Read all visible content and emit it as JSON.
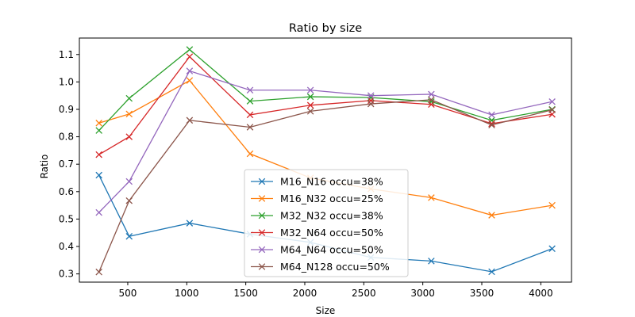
{
  "chart_data": {
    "type": "line",
    "title": "Ratio by size",
    "xlabel": "Size",
    "ylabel": "Ratio",
    "xlim": [
      90,
      4260
    ],
    "ylim": [
      0.27,
      1.16
    ],
    "xticks": [
      500,
      1000,
      1500,
      2000,
      2500,
      3000,
      3500,
      4000
    ],
    "yticks": [
      0.3,
      0.4,
      0.5,
      0.6,
      0.7,
      0.8,
      0.9,
      1.0,
      1.1
    ],
    "ytick_labels": [
      "0.3",
      "0.4",
      "0.5",
      "0.6",
      "0.7",
      "0.8",
      "0.9",
      "1.0",
      "1.1"
    ],
    "grid": false,
    "legend_position": "lower center",
    "marker": "x",
    "x": [
      256,
      512,
      1024,
      1536,
      2048,
      2560,
      3072,
      3584,
      4096
    ],
    "series": [
      {
        "name": "M16_N16 occu=38%",
        "color": "#1f77b4",
        "values": [
          0.66,
          0.437,
          0.485,
          0.445,
          0.415,
          0.36,
          0.347,
          0.308,
          0.392
        ]
      },
      {
        "name": "M16_N32 occu=25%",
        "color": "#ff7f0e",
        "values": [
          0.85,
          0.883,
          1.005,
          0.738,
          0.65,
          0.61,
          0.578,
          0.514,
          0.55
        ]
      },
      {
        "name": "M32_N32 occu=38%",
        "color": "#2ca02c",
        "values": [
          0.823,
          0.94,
          1.118,
          0.93,
          0.946,
          0.943,
          0.928,
          0.86,
          0.9
        ]
      },
      {
        "name": "M32_N64 occu=50%",
        "color": "#d62728",
        "values": [
          0.735,
          0.8,
          1.092,
          0.88,
          0.915,
          0.932,
          0.918,
          0.848,
          0.882
        ]
      },
      {
        "name": "M64_N64 occu=50%",
        "color": "#9467bd",
        "values": [
          0.524,
          0.637,
          1.04,
          0.97,
          0.97,
          0.95,
          0.955,
          0.88,
          0.928
        ]
      },
      {
        "name": "M64_N128 occu=50%",
        "color": "#8c564b",
        "values": [
          0.307,
          0.567,
          0.86,
          0.835,
          0.893,
          0.92,
          0.935,
          0.843,
          0.898
        ]
      }
    ]
  }
}
